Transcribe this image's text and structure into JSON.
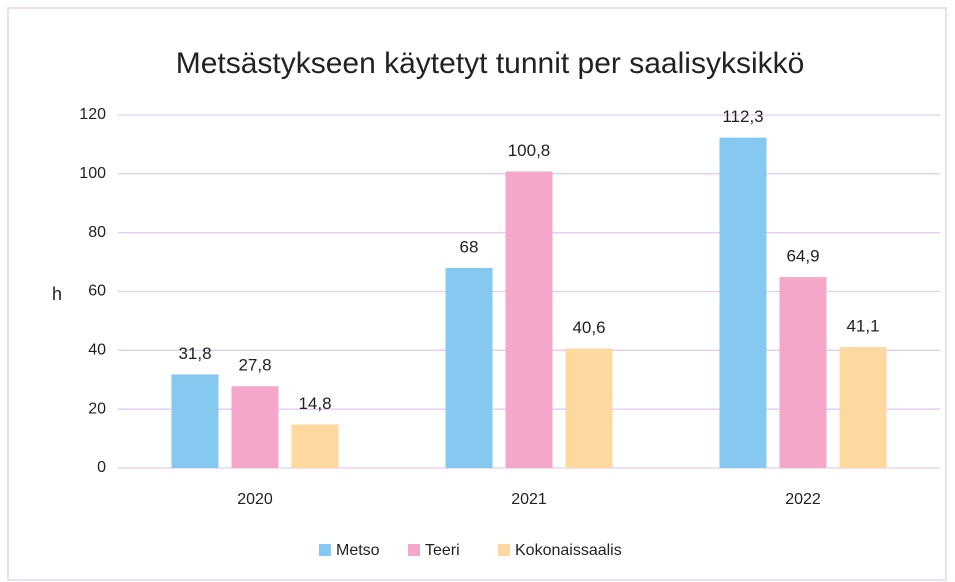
{
  "chart_data": {
    "type": "bar",
    "title": "Metsästykseen käytetyt tunnit per saalisyksikkö",
    "y_label": "h",
    "categories": [
      "2020",
      "2021",
      "2022"
    ],
    "series": [
      {
        "name": "Metso",
        "color": "#85c8f0",
        "values": [
          31.8,
          68,
          112.3
        ],
        "value_labels": [
          "31,8",
          "68",
          "112,3"
        ]
      },
      {
        "name": "Teeri",
        "color": "#f4a7c8",
        "values": [
          27.8,
          100.8,
          64.9
        ],
        "value_labels": [
          "27,8",
          "100,8",
          "64,9"
        ]
      },
      {
        "name": "Kokonaissaalis",
        "color": "#fdd9a0",
        "values": [
          14.8,
          40.6,
          41.1
        ],
        "value_labels": [
          "14,8",
          "40,6",
          "41,1"
        ]
      }
    ],
    "ylim": [
      0,
      120
    ],
    "yticks": [
      0,
      20,
      40,
      60,
      80,
      100,
      120
    ],
    "grid": true,
    "legend": "bottom"
  }
}
